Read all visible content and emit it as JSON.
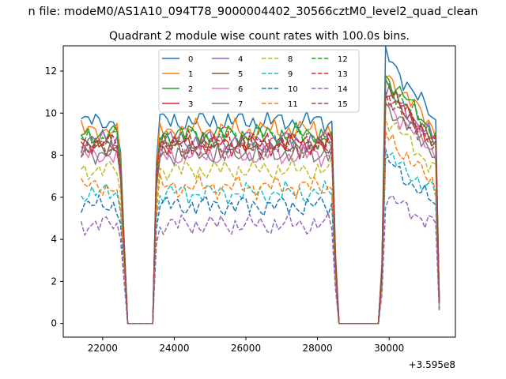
{
  "figure": {
    "suptitle": "n file: modeM0/AS1A10_094T78_9000004402_30566cztM0_level2_quad_clean",
    "title": "Quadrant 2 module wise count rates with 100.0s bins.",
    "offset_text": "+3.595e8"
  },
  "chart_data": {
    "type": "line",
    "title": "Quadrant 2 module wise count rates with 100.0s bins.",
    "xlabel": "",
    "ylabel": "",
    "x_offset": 359500000,
    "xlim": [
      20900,
      31850
    ],
    "ylim": [
      -0.65,
      13.2
    ],
    "xticks": [
      22000,
      24000,
      26000,
      28000,
      30000
    ],
    "yticks": [
      0,
      2,
      4,
      6,
      8,
      10,
      12
    ],
    "grid": false,
    "legend_position": "upper center",
    "x_start": 21400,
    "x_step": 100,
    "active_windows": [
      [
        21400,
        22600
      ],
      [
        23500,
        28500
      ],
      [
        29800,
        31400
      ]
    ],
    "series": [
      {
        "name": "0",
        "color": "#1f77b4",
        "style": "solid",
        "level": 9.6,
        "peak": 12.8
      },
      {
        "name": "1",
        "color": "#ff7f0e",
        "style": "solid",
        "level": 9.2,
        "peak": 11.9
      },
      {
        "name": "2",
        "color": "#2ca02c",
        "style": "solid",
        "level": 9.0,
        "peak": 11.8
      },
      {
        "name": "3",
        "color": "#d62728",
        "style": "solid",
        "level": 8.5,
        "peak": 11.2
      },
      {
        "name": "4",
        "color": "#9467bd",
        "style": "solid",
        "level": 8.7,
        "peak": 11.0
      },
      {
        "name": "5",
        "color": "#8c564b",
        "style": "solid",
        "level": 8.4,
        "peak": 11.3
      },
      {
        "name": "6",
        "color": "#e377c2",
        "style": "solid",
        "level": 8.0,
        "peak": 10.5
      },
      {
        "name": "7",
        "color": "#7f7f7f",
        "style": "solid",
        "level": 8.1,
        "peak": 10.4
      },
      {
        "name": "8",
        "color": "#bcbd22",
        "style": "dashed",
        "level": 7.3,
        "peak": 9.8
      },
      {
        "name": "9",
        "color": "#17becf",
        "style": "dashed",
        "level": 6.2,
        "peak": 8.0
      },
      {
        "name": "10",
        "color": "#1f77b4",
        "style": "dashed",
        "level": 5.6,
        "peak": 7.8
      },
      {
        "name": "11",
        "color": "#ff7f0e",
        "style": "dashed",
        "level": 6.5,
        "peak": 9.0
      },
      {
        "name": "12",
        "color": "#2ca02c",
        "style": "dashed",
        "level": 8.8,
        "peak": 11.5
      },
      {
        "name": "13",
        "color": "#d62728",
        "style": "dashed",
        "level": 8.6,
        "peak": 11.0
      },
      {
        "name": "14",
        "color": "#9467bd",
        "style": "dashed",
        "level": 4.7,
        "peak": 6.0
      },
      {
        "name": "15",
        "color": "#8c564b",
        "style": "dashed",
        "level": 8.3,
        "peak": 10.6
      }
    ]
  }
}
